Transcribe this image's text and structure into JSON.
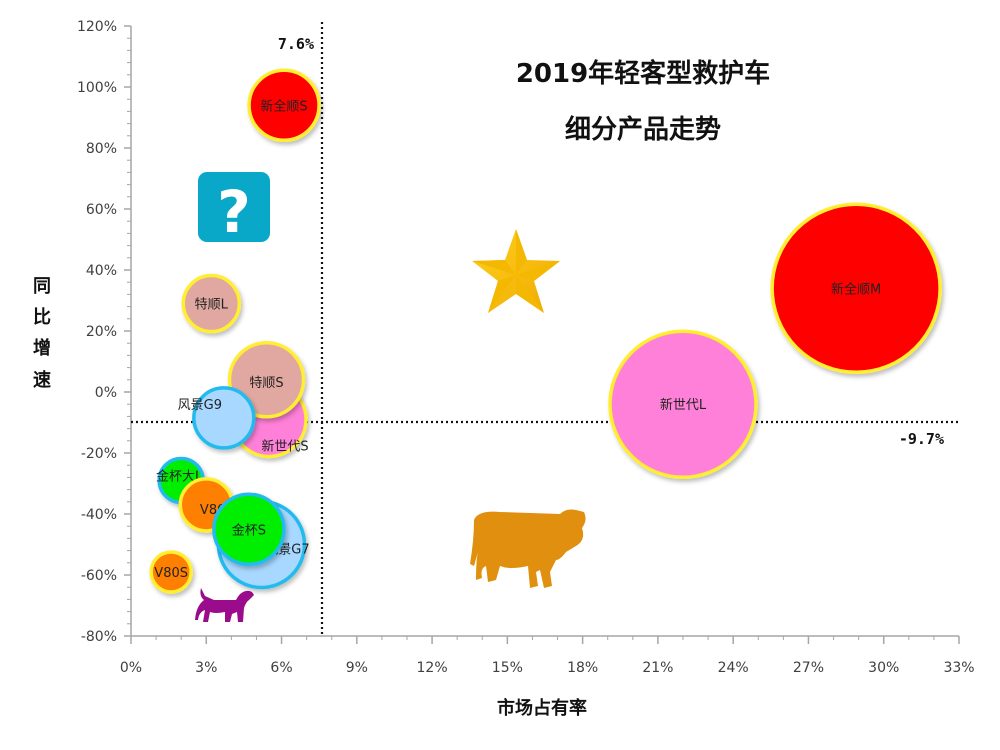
{
  "chart_data": {
    "type": "scatter",
    "subtype": "bubble",
    "title": "2019年轻客型救护车细分产品走势",
    "title_lines": [
      "2019年轻客型救护车",
      "细分产品走势"
    ],
    "xlabel": "市场占有率",
    "ylabel": "同比增速",
    "xlim": [
      0,
      33
    ],
    "ylim": [
      -80,
      120
    ],
    "x_ticks": [
      "0%",
      "3%",
      "6%",
      "9%",
      "12%",
      "15%",
      "18%",
      "21%",
      "24%",
      "27%",
      "30%",
      "33%"
    ],
    "y_ticks": [
      "120%",
      "100%",
      "80%",
      "60%",
      "40%",
      "20%",
      "0%",
      "-20%",
      "-40%",
      "-60%",
      "-80%"
    ],
    "grid": false,
    "legend": null,
    "reference_lines": {
      "x": {
        "value": 7.6,
        "label": "7.6%"
      },
      "y": {
        "value": -9.7,
        "label": "-9.7%"
      }
    },
    "points": [
      {
        "name": "新全顺S",
        "x": 6.1,
        "y": 94,
        "r": 35,
        "color": "#ff0000",
        "border": "#ffee33"
      },
      {
        "name": "特顺L",
        "x": 3.2,
        "y": 29,
        "r": 28,
        "color": "#e0a8a0",
        "border": "#ffee33"
      },
      {
        "name": "新世代S",
        "x": 5.5,
        "y": -9,
        "r": 37,
        "color": "#ff80d8",
        "border": "#ffee33"
      },
      {
        "name": "特顺S",
        "x": 5.4,
        "y": 4,
        "r": 37,
        "color": "#e0a8a0",
        "border": "#ffee33"
      },
      {
        "name": "风景G9",
        "x": 3.7,
        "y": -8.5,
        "r": 30,
        "color": "#a8d8ff",
        "border": "#22bbee"
      },
      {
        "name": "风景G7",
        "x": 5.2,
        "y": -50,
        "r": 43,
        "color": "#a8d8ff",
        "border": "#22bbee"
      },
      {
        "name": "金杯大L",
        "x": 2.0,
        "y": -29,
        "r": 22,
        "color": "#00ee00",
        "border": "#22bbee"
      },
      {
        "name": "V80L",
        "x": 3.0,
        "y": -37,
        "r": 26,
        "color": "#ff8000",
        "border": "#ffee33"
      },
      {
        "name": "金杯S",
        "x": 4.7,
        "y": -45,
        "r": 35,
        "color": "#00ee00",
        "border": "#22bbee"
      },
      {
        "name": "V80S",
        "x": 1.6,
        "y": -59,
        "r": 20,
        "color": "#ff8000",
        "border": "#ffee33"
      },
      {
        "name": "新世代L",
        "x": 22.0,
        "y": -4,
        "r": 73,
        "color": "#ff80d8",
        "border": "#ffee33"
      },
      {
        "name": "新全顺M",
        "x": 28.9,
        "y": 34,
        "r": 84,
        "color": "#ff0000",
        "border": "#ffee33"
      }
    ],
    "quadrant_icons": [
      {
        "name": "question-mark-icon",
        "quadrant": "low-share-high-growth"
      },
      {
        "name": "star-icon",
        "quadrant": "high-share-high-growth"
      },
      {
        "name": "cash-cow-icon",
        "quadrant": "high-share-low-growth"
      },
      {
        "name": "dog-icon",
        "quadrant": "low-share-low-growth"
      }
    ]
  },
  "labels": {
    "title_line1": "2019年轻客型救护车",
    "title_line2": "细分产品走势",
    "xlabel": "市场占有率",
    "ylabel_chars": [
      "同",
      "比",
      "增",
      "速"
    ],
    "ref_x_label": "7.6%",
    "ref_y_label": "-9.7%",
    "question_mark": "?"
  }
}
